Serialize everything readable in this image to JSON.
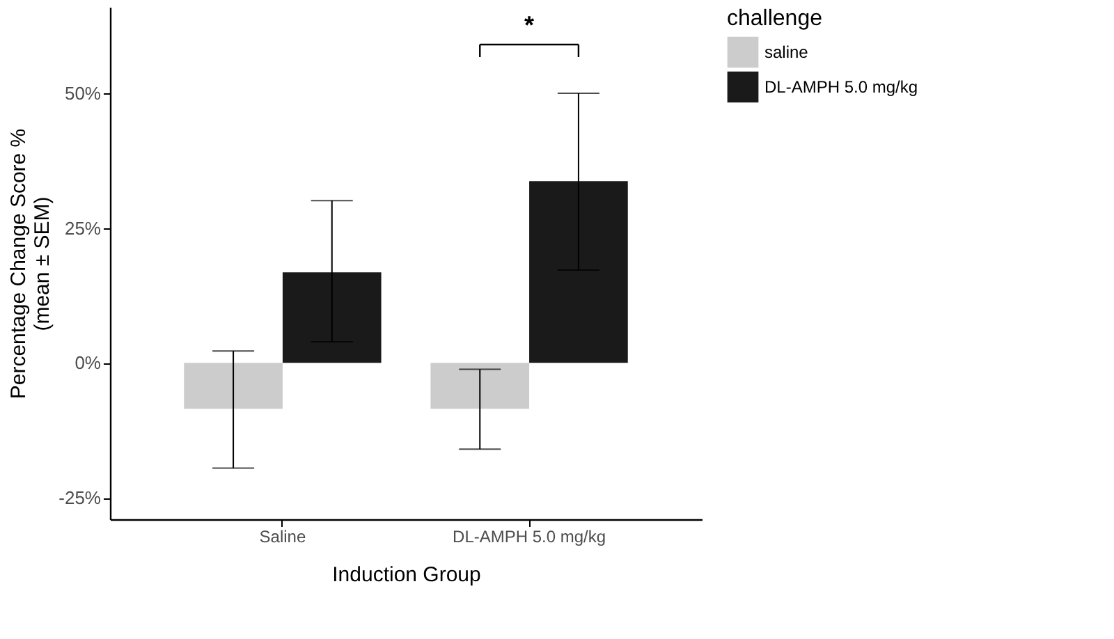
{
  "chart_data": {
    "type": "bar",
    "xlabel": "Induction Group",
    "ylabel": "Percentage Change Score %\n(mean ± SEM)",
    "legend_title": "challenge",
    "categories": [
      "Saline",
      "DL-AMPH 5.0 mg/kg"
    ],
    "series": [
      {
        "name": "saline",
        "color": "#cccccc",
        "values": [
          -8.5,
          -8.5
        ],
        "errors": [
          [
            -19.5,
            2.2
          ],
          [
            -16,
            -1.2
          ]
        ]
      },
      {
        "name": "DL-AMPH 5.0 mg/kg",
        "color": "#1a1a1a",
        "values": [
          16.8,
          33.7
        ],
        "errors": [
          [
            3.9,
            30.1
          ],
          [
            17.2,
            50
          ]
        ]
      }
    ],
    "ylim": [
      -29,
      66
    ],
    "yticks": [
      {
        "value": -25,
        "label": "-25%"
      },
      {
        "value": 0,
        "label": "0%"
      },
      {
        "value": 25,
        "label": "25%"
      },
      {
        "value": 50,
        "label": "50%"
      }
    ],
    "grid": false,
    "legend": "right",
    "annotations": [
      "*"
    ]
  }
}
